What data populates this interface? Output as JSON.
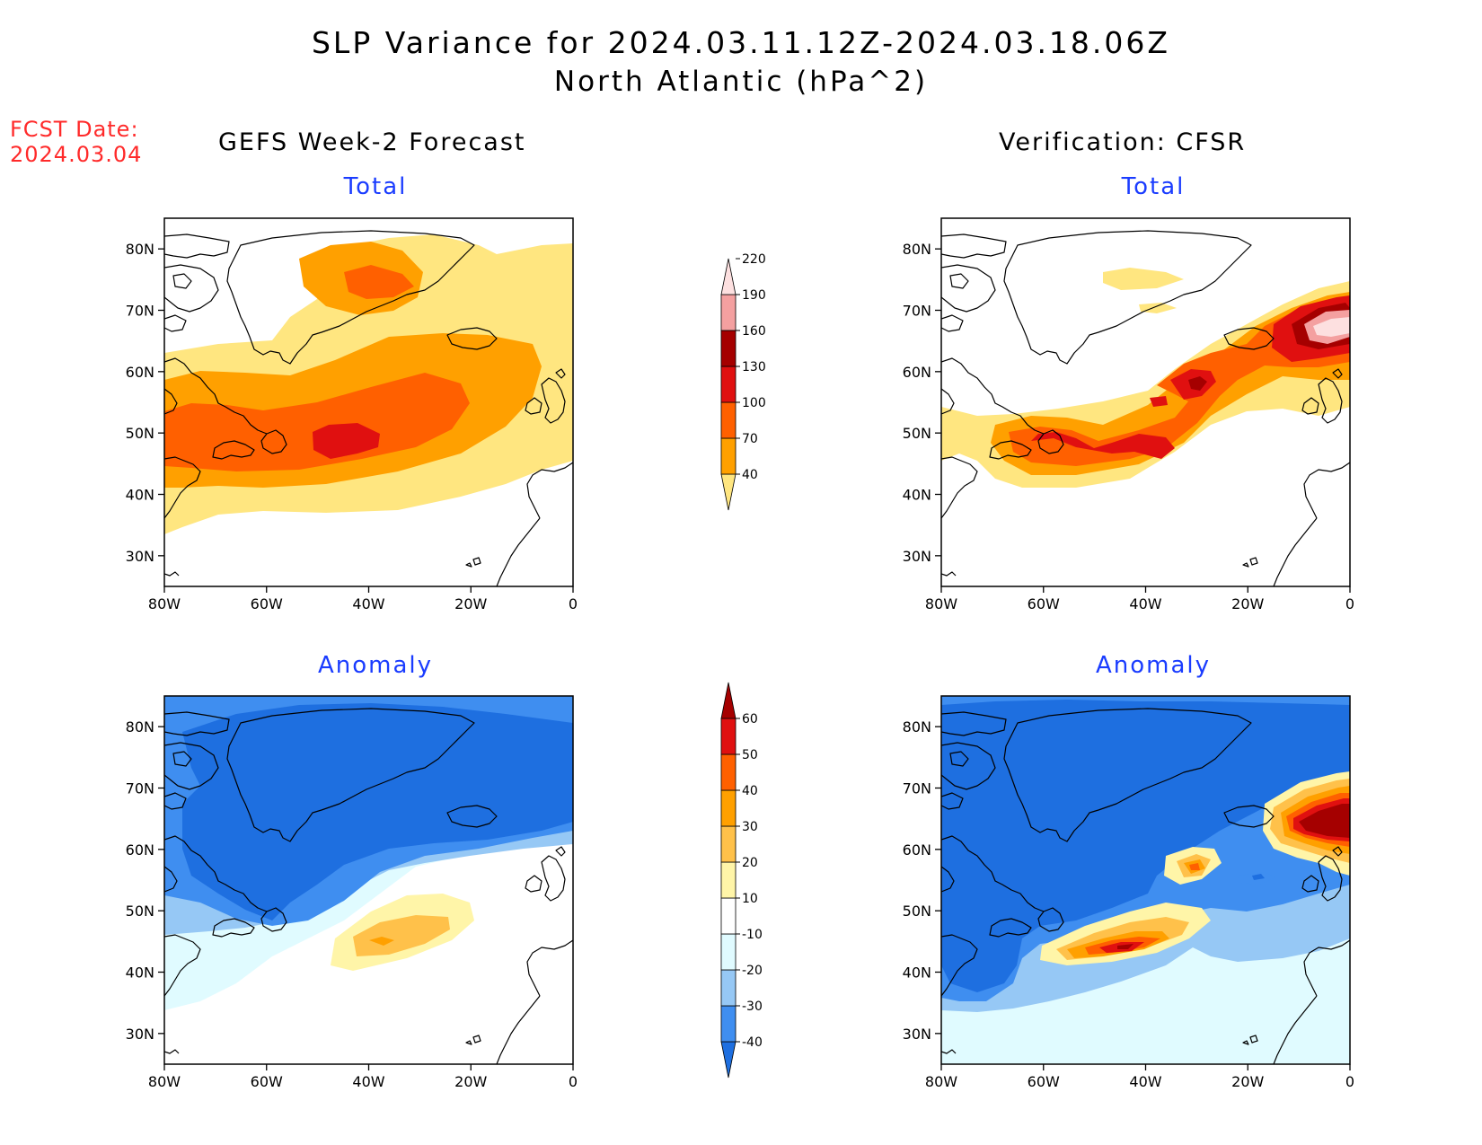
{
  "title": {
    "line1": "SLP Variance for 2024.03.11.12Z-2024.03.18.06Z",
    "line2": "North Atlantic (hPa^2)"
  },
  "fcst_date": {
    "label": "FCST Date:",
    "value": "2024.03.04"
  },
  "columns": {
    "left_heading": "GEFS Week-2 Forecast",
    "right_heading": "Verification: CFSR"
  },
  "panels": {
    "total": "Total",
    "anomaly": "Anomaly"
  },
  "axes": {
    "lat_labels": [
      "80N",
      "70N",
      "60N",
      "50N",
      "40N",
      "30N"
    ],
    "lon_labels": [
      "80W",
      "60W",
      "40W",
      "20W",
      "0"
    ]
  },
  "colorbars": {
    "total": {
      "levels": [
        "40",
        "70",
        "100",
        "130",
        "160",
        "190",
        "220"
      ],
      "colors": [
        "#ffe680",
        "#ffa000",
        "#ff6000",
        "#e01010",
        "#a50000",
        "#f4a0a0",
        "#fde0e0"
      ]
    },
    "anomaly": {
      "levels": [
        "-40",
        "-30",
        "-20",
        "-10",
        "10",
        "20",
        "30",
        "40",
        "50",
        "60"
      ],
      "colors": [
        "#1e6fe0",
        "#3f8ef0",
        "#96c8f5",
        "#e0fbff",
        "#ffffff",
        "#fff5a8",
        "#ffc14a",
        "#ffa000",
        "#ff6000",
        "#e01010",
        "#a50000"
      ]
    }
  }
}
